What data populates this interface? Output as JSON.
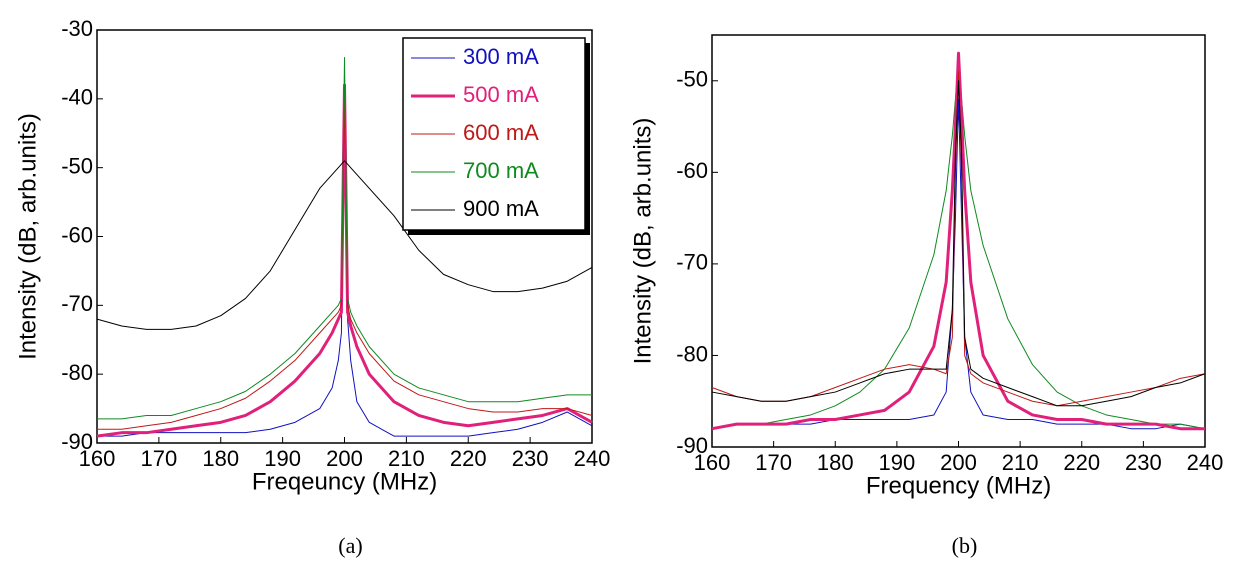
{
  "chart_data": [
    {
      "type": "line",
      "caption": "(a)",
      "xlabel": "Freqeuncy (MHz)",
      "ylabel": "Intensity (dB, arb.units)",
      "xlim": [
        160,
        240
      ],
      "xticks": [
        160,
        170,
        180,
        190,
        200,
        210,
        220,
        230,
        240
      ],
      "ylim": [
        -90,
        -30
      ],
      "yticks": [
        -90,
        -80,
        -70,
        -60,
        -50,
        -40,
        -30
      ],
      "grid": false,
      "legend": "upper right",
      "x": [
        160,
        164,
        168,
        172,
        176,
        180,
        184,
        188,
        192,
        196,
        198,
        199,
        199.5,
        200,
        200.5,
        201,
        202,
        204,
        208,
        212,
        216,
        220,
        224,
        228,
        232,
        236,
        240
      ],
      "series": [
        {
          "name": "300 mA",
          "color": "#1010c0",
          "width": 1,
          "values": [
            -89,
            -89,
            -88.5,
            -88.5,
            -88.5,
            -88.5,
            -88.5,
            -88,
            -87,
            -85,
            -82,
            -78,
            -74,
            -40,
            -72,
            -78,
            -84,
            -87,
            -89,
            -89,
            -89,
            -89,
            -88.5,
            -88,
            -87,
            -85.5,
            -87.5
          ]
        },
        {
          "name": "500 mA",
          "color": "#e0207a",
          "width": 3,
          "values": [
            -89,
            -88.5,
            -88.5,
            -88,
            -87.5,
            -87,
            -86,
            -84,
            -81,
            -77,
            -74,
            -72,
            -71,
            -38,
            -71,
            -73,
            -76,
            -80,
            -84,
            -86,
            -87,
            -87.5,
            -87,
            -86.5,
            -86,
            -85,
            -87
          ]
        },
        {
          "name": "600 mA",
          "color": "#c01818",
          "width": 1,
          "values": [
            -88,
            -88,
            -87.5,
            -87,
            -86,
            -85,
            -83.5,
            -81,
            -78,
            -74,
            -72,
            -71,
            -70,
            -39,
            -70,
            -72,
            -74,
            -77,
            -81,
            -83,
            -84,
            -85,
            -85.5,
            -85.5,
            -85,
            -85,
            -86
          ]
        },
        {
          "name": "700 mA",
          "color": "#108a20",
          "width": 1,
          "values": [
            -86.5,
            -86.5,
            -86,
            -86,
            -85,
            -84,
            -82.5,
            -80,
            -77,
            -73,
            -71,
            -70,
            -69,
            -34,
            -69,
            -71,
            -73,
            -76,
            -80,
            -82,
            -83,
            -84,
            -84,
            -84,
            -83.5,
            -83,
            -83
          ]
        },
        {
          "name": "900 mA",
          "color": "#000000",
          "width": 1,
          "values": [
            -72,
            -73,
            -73.5,
            -73.5,
            -73,
            -71.5,
            -69,
            -65,
            -59,
            -53,
            -51,
            -50,
            -49.5,
            -49,
            -49.5,
            -50,
            -51,
            -53,
            -57,
            -62,
            -65.5,
            -67,
            -68,
            -68,
            -67.5,
            -66.5,
            -64.5
          ]
        }
      ]
    },
    {
      "type": "line",
      "caption": "(b)",
      "xlabel": "Frequency (MHz)",
      "ylabel": "Intensity (dB, arb.units)",
      "xlim": [
        160,
        240
      ],
      "xticks": [
        160,
        170,
        180,
        190,
        200,
        210,
        220,
        230,
        240
      ],
      "ylim": [
        -90,
        -45
      ],
      "yticks": [
        -90,
        -80,
        -70,
        -60,
        -50
      ],
      "grid": false,
      "x": [
        160,
        164,
        168,
        172,
        176,
        180,
        184,
        188,
        192,
        196,
        198,
        199,
        199.5,
        200,
        200.5,
        201,
        202,
        204,
        208,
        212,
        216,
        220,
        224,
        228,
        232,
        236,
        240
      ],
      "series": [
        {
          "color": "#1010c0",
          "width": 1,
          "values": [
            -88,
            -87.5,
            -87.5,
            -87.5,
            -87.5,
            -87,
            -87,
            -87,
            -87,
            -86.5,
            -84,
            -75,
            -65,
            -52,
            -65,
            -78,
            -84,
            -86.5,
            -87,
            -87,
            -87.5,
            -87.5,
            -87.5,
            -88,
            -88,
            -87.5,
            -88
          ]
        },
        {
          "color": "#108a20",
          "width": 1,
          "values": [
            -88,
            -87.5,
            -87.5,
            -87,
            -86.5,
            -85.5,
            -84,
            -81.5,
            -77,
            -69,
            -62,
            -56,
            -52,
            -48,
            -52,
            -56,
            -62,
            -68,
            -76,
            -81,
            -84,
            -85.5,
            -86.5,
            -87,
            -87.5,
            -87.5,
            -88
          ]
        },
        {
          "color": "#e0207a",
          "width": 3,
          "values": [
            -88,
            -87.5,
            -87.5,
            -87.5,
            -87,
            -87,
            -86.5,
            -86,
            -84,
            -79,
            -72,
            -62,
            -55,
            -47,
            -54,
            -62,
            -72,
            -80,
            -85,
            -86.5,
            -87,
            -87,
            -87.5,
            -87.5,
            -87.5,
            -88,
            -88
          ]
        },
        {
          "color": "#c01818",
          "width": 1,
          "values": [
            -83.5,
            -84.5,
            -85,
            -85,
            -84.5,
            -83.5,
            -82.5,
            -81.5,
            -81,
            -81.5,
            -82,
            -78,
            -60,
            -49,
            -60,
            -80,
            -82,
            -83,
            -84,
            -85,
            -85.5,
            -85,
            -84.5,
            -84,
            -83.5,
            -82.5,
            -82
          ]
        },
        {
          "color": "#000000",
          "width": 1,
          "values": [
            -84,
            -84.5,
            -85,
            -85,
            -84.5,
            -84,
            -83,
            -82,
            -81.5,
            -81.5,
            -81.5,
            -75,
            -58,
            -50,
            -58,
            -78,
            -81.5,
            -82.5,
            -83.5,
            -84.5,
            -85.5,
            -85.5,
            -85,
            -84.5,
            -83.5,
            -83,
            -82
          ]
        }
      ]
    }
  ]
}
